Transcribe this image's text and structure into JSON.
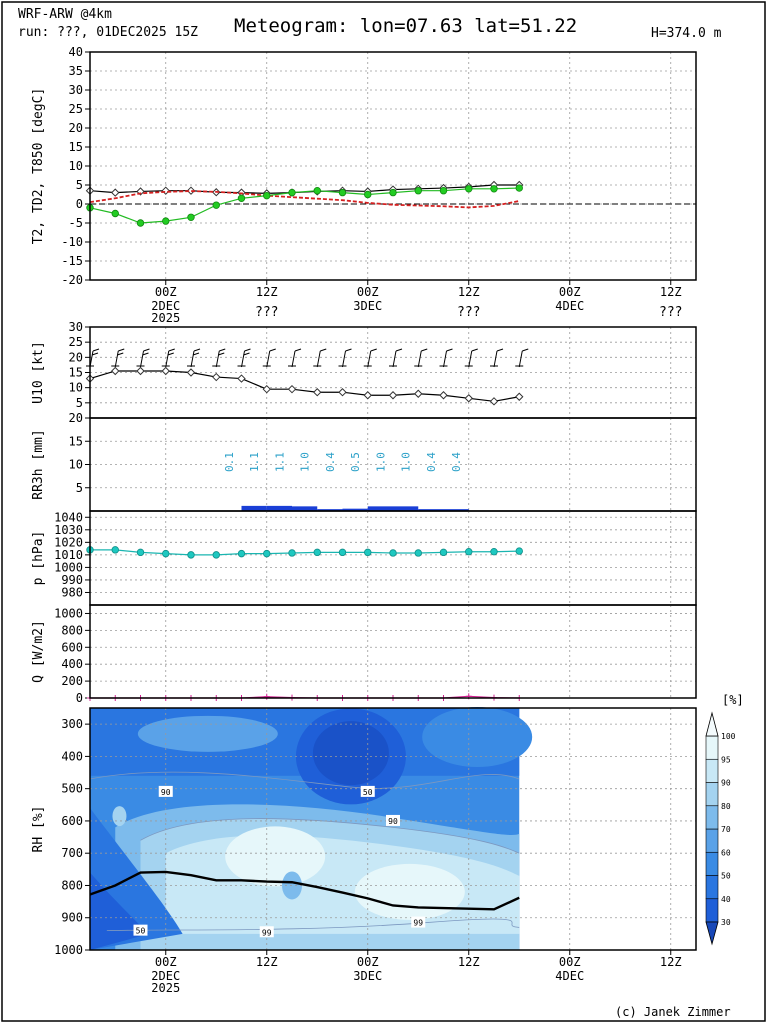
{
  "header": {
    "model": "WRF-ARW @4km",
    "run": "run: ???, 01DEC2025 15Z",
    "title": "Meteogram: lon=07.63 lat=51.22",
    "height": "H=374.0 m"
  },
  "footer": {
    "credit": "(c) Janek Zimmer"
  },
  "time_axis": {
    "ticks": [
      {
        "t": 9,
        "top": "00Z",
        "mid": "2DEC",
        "bottom": "2025"
      },
      {
        "t": 21,
        "top": "12Z",
        "mid": "",
        "bottom": "???"
      },
      {
        "t": 33,
        "top": "00Z",
        "mid": "3DEC",
        "bottom": ""
      },
      {
        "t": 45,
        "top": "12Z",
        "mid": "",
        "bottom": "???"
      },
      {
        "t": 57,
        "top": "00Z",
        "mid": "4DEC",
        "bottom": ""
      },
      {
        "t": 69,
        "top": "12Z",
        "mid": "",
        "bottom": "???"
      }
    ],
    "rh_ticks": [
      {
        "t": 9,
        "top": "00Z",
        "mid": "2DEC",
        "bottom": "2025"
      },
      {
        "t": 21,
        "top": "12Z",
        "mid": "",
        "bottom": ""
      },
      {
        "t": 33,
        "top": "00Z",
        "mid": "3DEC",
        "bottom": ""
      },
      {
        "t": 45,
        "top": "12Z",
        "mid": "",
        "bottom": ""
      },
      {
        "t": 57,
        "top": "00Z",
        "mid": "4DEC",
        "bottom": ""
      },
      {
        "t": 69,
        "top": "12Z",
        "mid": "",
        "bottom": ""
      }
    ]
  },
  "chart_data": [
    {
      "type": "line",
      "id": "temperature",
      "ylabel": "T2, TD2, T850 [degC]",
      "ylim": [
        -20,
        40
      ],
      "yticks": [
        -20,
        -15,
        -10,
        -5,
        0,
        5,
        10,
        15,
        20,
        25,
        30,
        35,
        40
      ],
      "x_hours_from_15Z": [
        0,
        3,
        6,
        9,
        12,
        15,
        18,
        21,
        24,
        27,
        30,
        33,
        36,
        39,
        42,
        45,
        48,
        51
      ],
      "series": [
        {
          "name": "T2",
          "color": "#000000",
          "values": [
            3.5,
            3,
            3.3,
            3.5,
            3.5,
            3.1,
            3,
            2.8,
            3,
            3.3,
            3.5,
            3.3,
            3.8,
            4,
            4.2,
            4.5,
            5,
            5
          ]
        },
        {
          "name": "TD2",
          "color": "#22bb22",
          "values": [
            -1,
            -2.5,
            -5,
            -4.5,
            -3.5,
            -0.3,
            1.5,
            2.2,
            3,
            3.5,
            3,
            2.5,
            3,
            3.5,
            3.5,
            4,
            4,
            4.2
          ]
        },
        {
          "name": "T850",
          "color": "#d42020",
          "values": [
            0.5,
            1.5,
            2.8,
            3.2,
            3.4,
            3.2,
            2.8,
            2.2,
            1.8,
            1.4,
            1.0,
            0.3,
            -0.2,
            -0.4,
            -0.6,
            -0.9,
            -0.5,
            0.8
          ]
        }
      ]
    },
    {
      "type": "line",
      "id": "wind",
      "ylabel": "U10 [kt]",
      "ylim": [
        0,
        30
      ],
      "yticks": [
        5,
        10,
        15,
        20,
        25,
        30
      ],
      "x_hours_from_15Z": [
        0,
        3,
        6,
        9,
        12,
        15,
        18,
        21,
        24,
        27,
        30,
        33,
        36,
        39,
        42,
        45,
        48,
        51
      ],
      "series": [
        {
          "name": "U10",
          "color": "#000000",
          "values": [
            13,
            15.5,
            15.5,
            15.5,
            15,
            13.5,
            13,
            9.5,
            9.5,
            8.5,
            8.5,
            7.5,
            7.5,
            8,
            7.5,
            6.5,
            5.5,
            7
          ]
        }
      ]
    },
    {
      "type": "bar",
      "id": "precipitation",
      "ylabel": "RR3h [mm]",
      "ylim": [
        0,
        20
      ],
      "yticks": [
        5,
        10,
        15,
        20
      ],
      "bars": [
        {
          "t_start": 15,
          "t_end": 18,
          "value": 0.1,
          "label": "0.1"
        },
        {
          "t_start": 18,
          "t_end": 21,
          "value": 1.1,
          "label": "1.1"
        },
        {
          "t_start": 21,
          "t_end": 24,
          "value": 1.1,
          "label": "1.1"
        },
        {
          "t_start": 24,
          "t_end": 27,
          "value": 1.0,
          "label": "1.0"
        },
        {
          "t_start": 27,
          "t_end": 30,
          "value": 0.4,
          "label": "0.4"
        },
        {
          "t_start": 30,
          "t_end": 33,
          "value": 0.5,
          "label": "0.5"
        },
        {
          "t_start": 33,
          "t_end": 36,
          "value": 1.0,
          "label": "1.0"
        },
        {
          "t_start": 36,
          "t_end": 39,
          "value": 1.0,
          "label": "1.0"
        },
        {
          "t_start": 39,
          "t_end": 42,
          "value": 0.4,
          "label": "0.4"
        },
        {
          "t_start": 42,
          "t_end": 45,
          "value": 0.4,
          "label": "0.4"
        }
      ],
      "bar_color": "#1a3fd6",
      "label_color": "#2aa0c8"
    },
    {
      "type": "line",
      "id": "pressure",
      "ylabel": "p [hPa]",
      "ylim": [
        970,
        1045
      ],
      "yticks": [
        980,
        990,
        1000,
        1010,
        1020,
        1030,
        1040
      ],
      "x_hours_from_15Z": [
        0,
        3,
        6,
        9,
        12,
        15,
        18,
        21,
        24,
        27,
        30,
        33,
        36,
        39,
        42,
        45,
        48,
        51
      ],
      "series": [
        {
          "name": "p",
          "color": "#1ab5b0",
          "values": [
            1014,
            1014,
            1012,
            1011,
            1010,
            1010,
            1011,
            1011,
            1011.5,
            1012,
            1012,
            1012,
            1011.5,
            1011.5,
            1012,
            1012.5,
            1012.5,
            1013
          ]
        }
      ]
    },
    {
      "type": "line",
      "id": "radiation",
      "ylabel": "Q [W/m2]",
      "ylim": [
        0,
        1100
      ],
      "yticks": [
        0,
        200,
        400,
        600,
        800,
        1000
      ],
      "x_hours_from_15Z": [
        0,
        3,
        6,
        9,
        12,
        15,
        18,
        21,
        24,
        27,
        30,
        33,
        36,
        39,
        42,
        45,
        48,
        51
      ],
      "series": [
        {
          "name": "Q",
          "color": "#d02090",
          "values": [
            0,
            0,
            0,
            0,
            0,
            0,
            0,
            15,
            5,
            0,
            0,
            0,
            0,
            0,
            0,
            20,
            5,
            0
          ]
        }
      ]
    },
    {
      "type": "heatmap",
      "id": "relative-humidity",
      "ylabel": "RH [%]",
      "yticks": [
        300,
        400,
        500,
        600,
        700,
        800,
        900,
        1000
      ],
      "ylim_hPa": [
        250,
        1000
      ],
      "colorbar_unit": "[%]",
      "colorbar_levels": [
        30,
        40,
        50,
        60,
        70,
        80,
        90,
        95,
        100
      ],
      "colorbar_colors": [
        "#1f5fd8",
        "#2a76e0",
        "#3a8be4",
        "#5aa2e8",
        "#7dbbec",
        "#a4d3f0",
        "#c8e8f6",
        "#e6f7fa"
      ],
      "contour_labels": [
        {
          "t": 9,
          "p": 510,
          "text": "90"
        },
        {
          "t": 33,
          "p": 510,
          "text": "50"
        },
        {
          "t": 36,
          "p": 600,
          "text": "90"
        },
        {
          "t": 6,
          "p": 940,
          "text": "50"
        },
        {
          "t": 21,
          "p": 945,
          "text": "99"
        },
        {
          "t": 39,
          "p": 915,
          "text": "99"
        }
      ],
      "boundary_layer_hPa": {
        "x_hours_from_15Z": [
          0,
          3,
          6,
          9,
          12,
          15,
          18,
          21,
          24,
          27,
          30,
          33,
          36,
          39,
          42,
          45,
          48,
          51
        ],
        "values": [
          828,
          800,
          760,
          758,
          768,
          784,
          784,
          788,
          790,
          805,
          822,
          840,
          862,
          868,
          870,
          872,
          874,
          838
        ]
      }
    }
  ]
}
